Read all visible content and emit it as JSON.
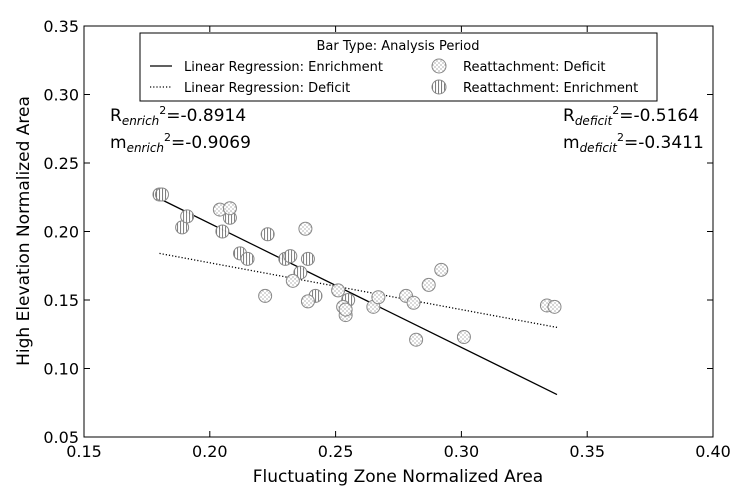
{
  "chart_data": {
    "type": "scatter",
    "xlabel": "Fluctuating Zone Normalized Area",
    "ylabel": "High Elevation Normalized Area",
    "xlim": [
      0.15,
      0.4
    ],
    "ylim": [
      0.05,
      0.35
    ],
    "xticks": [
      0.15,
      0.2,
      0.25,
      0.3,
      0.35,
      0.4
    ],
    "yticks": [
      0.05,
      0.1,
      0.15,
      0.2,
      0.25,
      0.3,
      0.35
    ],
    "xtick_labels": [
      "0.15",
      "0.20",
      "0.25",
      "0.30",
      "0.35",
      "0.40"
    ],
    "ytick_labels": [
      "0.05",
      "0.10",
      "0.15",
      "0.20",
      "0.25",
      "0.30",
      "0.35"
    ],
    "grid": false,
    "legend": {
      "title": "Bar Type: Analysis Period",
      "placement": "top-center",
      "entries": [
        "Linear Regression: Enrichment",
        "Linear Regression: Deficit",
        "Reattachment: Deficit",
        "Reattachment: Enrichment"
      ]
    },
    "annotations": {
      "enrich_r": {
        "base": "R",
        "sub": "enrich",
        "sup": "2",
        "value": "=-0.8914"
      },
      "enrich_m": {
        "base": "m",
        "sub": "enrich",
        "sup": "2",
        "value": "=-0.9069"
      },
      "deficit_r": {
        "base": "R",
        "sub": "deficit",
        "sup": "2",
        "value": "=-0.5164"
      },
      "deficit_m": {
        "base": "m",
        "sub": "deficit",
        "sup": "2",
        "value": "=-0.3411"
      }
    },
    "series": [
      {
        "name": "Reattachment: Enrichment",
        "type": "scatter",
        "marker": "vertical-hatch-circle",
        "x": [
          0.18,
          0.181,
          0.189,
          0.191,
          0.205,
          0.208,
          0.212,
          0.215,
          0.223,
          0.23,
          0.232,
          0.236,
          0.239,
          0.242,
          0.255
        ],
        "y": [
          0.227,
          0.227,
          0.203,
          0.211,
          0.2,
          0.21,
          0.184,
          0.18,
          0.198,
          0.18,
          0.182,
          0.17,
          0.18,
          0.153,
          0.15
        ]
      },
      {
        "name": "Reattachment: Deficit",
        "type": "scatter",
        "marker": "dot-hatch-circle",
        "x": [
          0.204,
          0.208,
          0.222,
          0.233,
          0.238,
          0.239,
          0.251,
          0.253,
          0.254,
          0.254,
          0.265,
          0.267,
          0.278,
          0.281,
          0.282,
          0.287,
          0.292,
          0.301,
          0.334,
          0.337
        ],
        "y": [
          0.216,
          0.217,
          0.153,
          0.164,
          0.202,
          0.149,
          0.157,
          0.145,
          0.139,
          0.143,
          0.145,
          0.152,
          0.153,
          0.148,
          0.121,
          0.161,
          0.172,
          0.123,
          0.146,
          0.145
        ]
      },
      {
        "name": "Linear Regression: Enrichment",
        "type": "line",
        "style": "solid",
        "x": [
          0.18,
          0.338
        ],
        "y": [
          0.224,
          0.081
        ]
      },
      {
        "name": "Linear Regression: Deficit",
        "type": "line",
        "style": "dotted",
        "x": [
          0.18,
          0.338
        ],
        "y": [
          0.184,
          0.13
        ]
      }
    ]
  }
}
